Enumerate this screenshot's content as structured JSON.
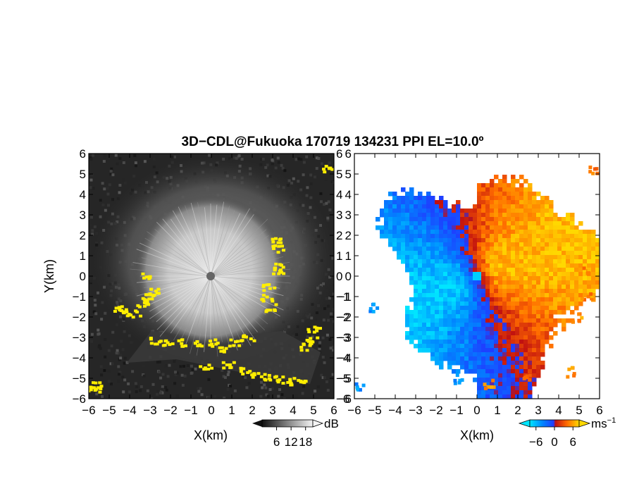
{
  "chart_data": {
    "title": "3D−CDL@Fukuoka 170719 134231 PPI EL=10.0º",
    "panels": [
      {
        "type": "heatmap",
        "field": "reflectivity",
        "xlabel": "X(km)",
        "ylabel": "Y(km)",
        "xlim": [
          -6,
          6
        ],
        "ylim": [
          -6,
          6
        ],
        "xticks": [
          "−6",
          "−5",
          "−4",
          "−3",
          "−2",
          "−1",
          "0",
          "1",
          "2",
          "3",
          "4",
          "5",
          "6"
        ],
        "yticks": [
          "−6",
          "−5",
          "−4",
          "−3",
          "−2",
          "−1",
          "0",
          "1",
          "2",
          "3",
          "4",
          "5",
          "6"
        ],
        "colorbar": {
          "ticks": [
            "6",
            "12",
            "18"
          ],
          "unit": "dB",
          "range": [
            0,
            21
          ]
        },
        "highlight_color": "#ffee00"
      },
      {
        "type": "heatmap",
        "field": "doppler_velocity",
        "xlabel": "X(km)",
        "xlim": [
          -6,
          6
        ],
        "ylim": [
          -6,
          6
        ],
        "xticks": [
          "−6",
          "−5",
          "−4",
          "−3",
          "−2",
          "−1",
          "0",
          "1",
          "2",
          "3",
          "4",
          "5",
          "6"
        ],
        "yticks": [
          "−6",
          "−5",
          "−4",
          "−3",
          "−2",
          "−1",
          "0",
          "1",
          "2",
          "3",
          "4",
          "5",
          "6"
        ],
        "colorbar": {
          "ticks": [
            "−6",
            "0",
            "6"
          ],
          "unit": "ms",
          "unit_exp": "−1",
          "range": [
            -8,
            8
          ]
        },
        "negative_color": "#1a66ff",
        "positive_color": "#ff5a00"
      }
    ]
  }
}
